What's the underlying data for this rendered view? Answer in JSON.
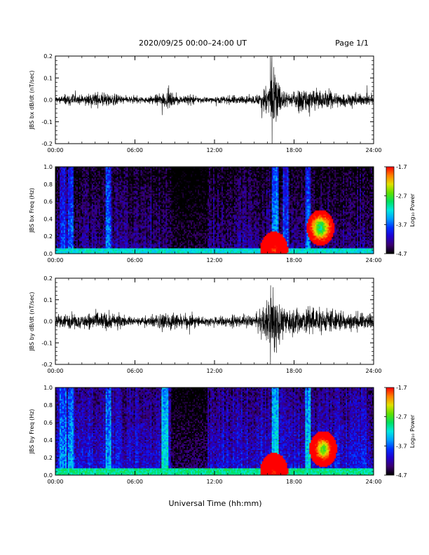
{
  "header": {
    "title": "2020/09/25  00:00–24:00 UT",
    "page": "Page 1/1"
  },
  "x_axis": {
    "label": "Universal Time (hh:mm)",
    "ticks": [
      "00:00",
      "06:00",
      "12:00",
      "18:00",
      "24:00"
    ],
    "range_hours": [
      0,
      24
    ]
  },
  "colorbar": {
    "label": "Log₁₀ Power",
    "ticks": [
      "-1.7",
      "-2.7",
      "-3.7",
      "-4.7"
    ],
    "range": [
      -4.7,
      -1.7
    ],
    "colors": [
      "#000000",
      "#3a0070",
      "#2000d0",
      "#0030ff",
      "#00a0ff",
      "#00e8e0",
      "#00e060",
      "#60e000",
      "#e0e000",
      "#ff8000",
      "#ff0000"
    ]
  },
  "chart_data": [
    {
      "type": "line",
      "ylabel": "JBS bx dB/dt (nT/sec)",
      "ylim": [
        -0.2,
        0.2
      ],
      "yticks": [
        "0.2",
        "0.1",
        "0.0",
        "-0.1",
        "-0.2"
      ],
      "xlim": [
        0,
        24
      ],
      "envelope": {
        "x_hours": [
          0,
          0.5,
          1,
          1.5,
          2,
          2.5,
          3,
          3.5,
          4,
          4.5,
          5,
          5.5,
          6,
          6.5,
          7,
          7.5,
          8,
          8.5,
          9,
          9.5,
          10,
          10.5,
          11,
          11.5,
          12,
          12.5,
          13,
          13.5,
          14,
          14.5,
          15,
          15.5,
          16,
          16.3,
          16.5,
          16.7,
          17,
          17.3,
          17.5,
          18,
          18.5,
          19,
          19.5,
          20,
          20.5,
          21,
          21.5,
          22,
          22.5,
          23,
          23.5,
          24
        ],
        "amplitude": [
          0.02,
          0.025,
          0.035,
          0.03,
          0.025,
          0.03,
          0.04,
          0.045,
          0.035,
          0.03,
          0.025,
          0.02,
          0.02,
          0.018,
          0.02,
          0.025,
          0.04,
          0.045,
          0.03,
          0.02,
          0.03,
          0.025,
          0.015,
          0.015,
          0.015,
          0.02,
          0.02,
          0.025,
          0.02,
          0.02,
          0.025,
          0.04,
          0.09,
          0.2,
          0.2,
          0.14,
          0.06,
          0.05,
          0.04,
          0.045,
          0.06,
          0.07,
          0.065,
          0.055,
          0.05,
          0.045,
          0.04,
          0.035,
          0.035,
          0.03,
          0.03,
          0.03
        ]
      }
    },
    {
      "type": "heatmap",
      "ylabel": "JBS bx Freq (Hz)",
      "ylim": [
        0,
        1.0
      ],
      "yticks": [
        "1.0",
        "0.8",
        "0.6",
        "0.4",
        "0.2",
        "0.0"
      ],
      "xlim": [
        0,
        24
      ],
      "zlim": [
        -4.7,
        -1.7
      ],
      "background_log_power": -4.3,
      "low_freq_band": {
        "freq_max_hz": 0.06,
        "log_power": -3.2
      },
      "vertical_bands_hours": [
        {
          "start": 0.3,
          "end": 0.8,
          "log_power": -3.8
        },
        {
          "start": 1.0,
          "end": 1.4,
          "log_power": -3.7
        },
        {
          "start": 3.8,
          "end": 4.2,
          "log_power": -3.6
        },
        {
          "start": 9.6,
          "end": 9.8,
          "log_power": -3.5
        },
        {
          "start": 16.3,
          "end": 16.8,
          "log_power": -3.4
        },
        {
          "start": 17.2,
          "end": 17.6,
          "log_power": -3.7
        },
        {
          "start": 18.8,
          "end": 19.3,
          "log_power": -3.6
        }
      ],
      "hotspots": [
        {
          "hour": 16.5,
          "freq_hz": 0.05,
          "log_power": -1.8
        },
        {
          "hour": 20.0,
          "freq_hz": 0.3,
          "log_power": -3.0
        }
      ],
      "quiet_hours": [
        {
          "start": 8.7,
          "end": 11.5,
          "log_power": -4.55
        }
      ]
    },
    {
      "type": "line",
      "ylabel": "JBS by dB/dt (nT/sec)",
      "ylim": [
        -0.2,
        0.2
      ],
      "yticks": [
        "0.2",
        "0.1",
        "0.0",
        "-0.1",
        "-0.2"
      ],
      "xlim": [
        0,
        24
      ],
      "envelope": {
        "x_hours": [
          0,
          0.5,
          1,
          1.5,
          2,
          2.5,
          3,
          3.5,
          4,
          4.5,
          5,
          5.5,
          6,
          6.5,
          7,
          7.5,
          8,
          8.5,
          9,
          9.5,
          10,
          10.5,
          11,
          11.5,
          12,
          12.5,
          13,
          13.5,
          14,
          14.5,
          15,
          15.5,
          16,
          16.3,
          16.5,
          16.7,
          17,
          17.3,
          17.5,
          18,
          18.5,
          19,
          19.5,
          20,
          20.5,
          21,
          21.5,
          22,
          22.5,
          23,
          23.5,
          24
        ],
        "amplitude": [
          0.03,
          0.035,
          0.05,
          0.04,
          0.035,
          0.04,
          0.05,
          0.055,
          0.045,
          0.04,
          0.035,
          0.03,
          0.025,
          0.025,
          0.03,
          0.03,
          0.05,
          0.06,
          0.045,
          0.03,
          0.04,
          0.035,
          0.025,
          0.025,
          0.025,
          0.03,
          0.03,
          0.035,
          0.03,
          0.03,
          0.035,
          0.05,
          0.12,
          0.2,
          0.2,
          0.16,
          0.09,
          0.08,
          0.07,
          0.075,
          0.08,
          0.085,
          0.08,
          0.07,
          0.065,
          0.06,
          0.055,
          0.05,
          0.05,
          0.045,
          0.045,
          0.04
        ]
      }
    },
    {
      "type": "heatmap",
      "ylabel": "JBS by Freq (Hz)",
      "ylim": [
        0,
        1.0
      ],
      "yticks": [
        "1.0",
        "0.8",
        "0.6",
        "0.4",
        "0.2",
        "0.0"
      ],
      "xlim": [
        0,
        24
      ],
      "zlim": [
        -4.7,
        -1.7
      ],
      "background_log_power": -4.0,
      "low_freq_band": {
        "freq_max_hz": 0.08,
        "log_power": -3.0
      },
      "vertical_bands_hours": [
        {
          "start": 0.3,
          "end": 0.8,
          "log_power": -3.5
        },
        {
          "start": 1.0,
          "end": 1.4,
          "log_power": -3.4
        },
        {
          "start": 3.8,
          "end": 4.2,
          "log_power": -3.4
        },
        {
          "start": 8.0,
          "end": 8.5,
          "log_power": -3.2
        },
        {
          "start": 9.6,
          "end": 9.8,
          "log_power": -3.3
        },
        {
          "start": 16.3,
          "end": 16.8,
          "log_power": -3.2
        },
        {
          "start": 18.8,
          "end": 19.3,
          "log_power": -3.3
        }
      ],
      "hotspots": [
        {
          "hour": 16.5,
          "freq_hz": 0.05,
          "log_power": -1.8
        },
        {
          "hour": 20.2,
          "freq_hz": 0.3,
          "log_power": -2.7
        }
      ],
      "quiet_hours": [
        {
          "start": 8.7,
          "end": 11.5,
          "log_power": -4.45
        }
      ]
    }
  ]
}
